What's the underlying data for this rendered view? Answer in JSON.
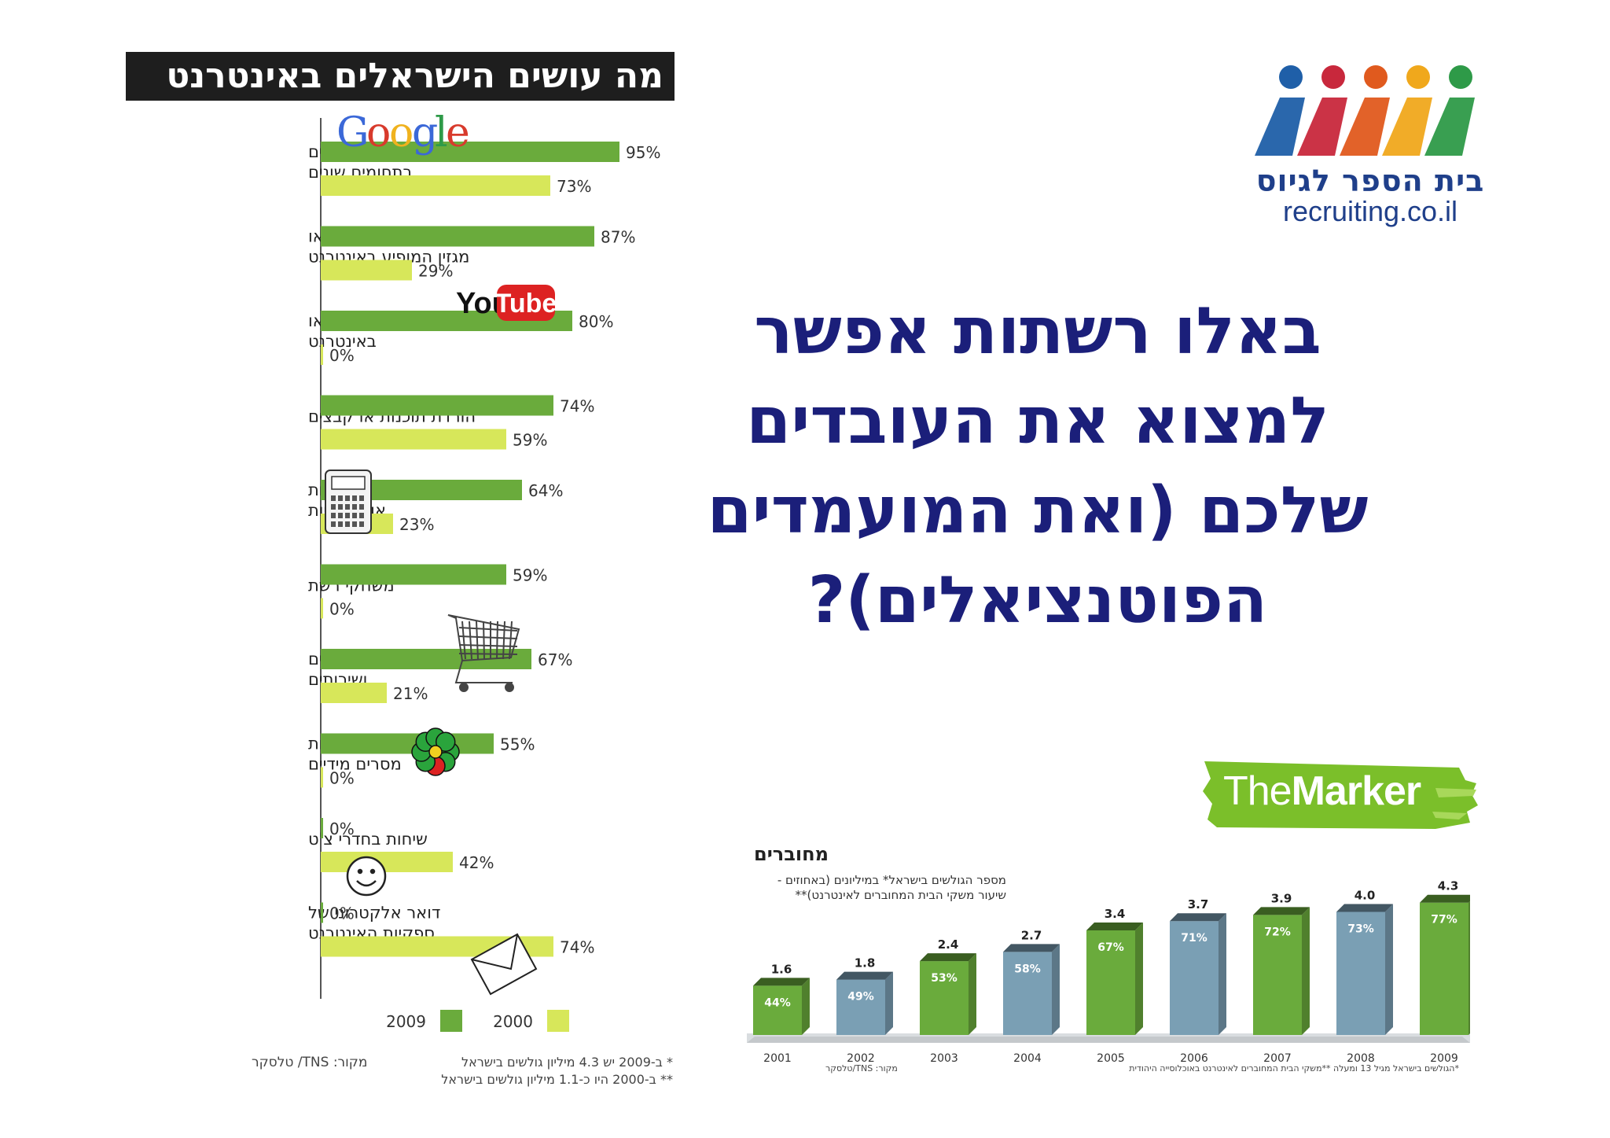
{
  "logo": {
    "hebrew_name": "בית הספר לגיוס",
    "url": "recruiting.co.il",
    "figure_colors": [
      "#1f5fa8",
      "#c8283c",
      "#e05a1e",
      "#f0a81c",
      "#2e9a48"
    ]
  },
  "headline": {
    "lines": [
      "באלו רשתות אפשר",
      "למצוא את העובדים",
      "שלכם (ואת המועמדים",
      "הפוטנציאלים)?"
    ]
  },
  "brand_marker": {
    "part1": "The",
    "part2": "Marker",
    "color": "#7bbf2a"
  },
  "icons": [
    "google-logo-icon",
    "youtube-logo-icon",
    "calculator-icon",
    "shopping-cart-icon",
    "icq-flower-icon",
    "smiley-icon",
    "envelope-icon"
  ],
  "google_text": [
    "G",
    "o",
    "o",
    "g",
    "l",
    "e"
  ],
  "youtube_text": {
    "you": "You",
    "tube": "Tube"
  },
  "chart_data": [
    {
      "type": "bar",
      "orientation": "horizontal",
      "title": "מה עושים הישראלים באינטרנט",
      "categories": [
        [
          "חיפוש מידע או נתונים",
          "בתחומים שונים"
        ],
        [
          "קריאת חדשות, עיתון או",
          "מגזין המופיע באינטרנט"
        ],
        [
          "צפייה בקטעי וידאו",
          "באינטרנט"
        ],
        [
          "הורדת תוכנות או קבצים"
        ],
        [
          "ביצוע פעולות בנקאיות",
          "או פיננסיות"
        ],
        [
          "משחקי רשת"
        ],
        [
          "קנייה או הזמנת מוצרים",
          "ושירותים"
        ],
        [
          "התכתבות בתוכנות",
          "מסרים מידיים"
        ],
        [
          "שיחות בחדרי צ'ט"
        ],
        [
          "דואר אלקטרוני של",
          "ספקיות האינטרנט"
        ]
      ],
      "series": [
        {
          "name": "2009",
          "color": "#6aab3c",
          "values": [
            95,
            87,
            80,
            74,
            64,
            59,
            67,
            55,
            0,
            0
          ]
        },
        {
          "name": "2000",
          "color": "#d7e75a",
          "values": [
            73,
            29,
            0,
            59,
            23,
            0,
            21,
            0,
            42,
            74
          ]
        }
      ],
      "value_suffix": "%",
      "xlim": [
        0,
        100
      ],
      "legend": [
        "2009",
        "2000"
      ],
      "source": "מקור: TNS/ טלסקר",
      "footnotes": [
        "* ב-2009 יש 4.3 מיליון גולשים בישראל",
        "** ב-2000 היו כ-1.1 מיליון גולשים בישראל"
      ]
    },
    {
      "type": "bar",
      "title": "מחוברים",
      "subtitle": [
        "מספר הגולשים בישראל* במיליונים (באחוזים -",
        "שיעור משקי הבית המחוברים לאינטרנט)**"
      ],
      "categories": [
        "2001",
        "2002",
        "2003",
        "2004",
        "2005",
        "2006",
        "2007",
        "2008",
        "2009"
      ],
      "values": [
        1.6,
        1.8,
        2.4,
        2.7,
        3.4,
        3.7,
        3.9,
        4.0,
        4.3
      ],
      "value_labels": [
        "1.6",
        "1.8",
        "2.4",
        "2.7",
        "3.4",
        "3.7",
        "3.9",
        "4.0",
        "4.3"
      ],
      "percent_labels": [
        "44%",
        "49%",
        "53%",
        "58%",
        "67%",
        "71%",
        "72%",
        "73%",
        "77%"
      ],
      "bar_colors": [
        "#6aab3c",
        "#7a9fb4",
        "#6aab3c",
        "#7a9fb4",
        "#6aab3c",
        "#7a9fb4",
        "#6aab3c",
        "#7a9fb4",
        "#6aab3c"
      ],
      "ylim": [
        0,
        4.6
      ],
      "source": "מקור: TNS/טלסקר",
      "footnote": "*הגולשים בישראל מגיל 13 ומעלה **משקי הבית המחוברים לאינטרנט באוכלוסייה היהודית"
    }
  ]
}
